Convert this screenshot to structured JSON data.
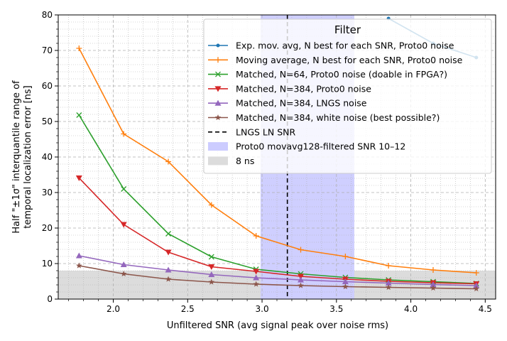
{
  "chart_data": {
    "type": "line",
    "title": "",
    "xlabel": "Unfiltered SNR (avg signal peak over noise rms)",
    "ylabel_lines": [
      "Half \"±1σ\" interquantile range of",
      "temporal localization error [ns]"
    ],
    "xlim": [
      1.63,
      4.57
    ],
    "ylim": [
      0,
      80
    ],
    "xticks": [
      2.0,
      2.5,
      3.0,
      3.5,
      4.0,
      4.5
    ],
    "xtick_labels": [
      "2.0",
      "2.5",
      "3.0",
      "3.5",
      "4.0",
      "4.5"
    ],
    "yticks": [
      0,
      10,
      20,
      30,
      40,
      50,
      60,
      70,
      80
    ],
    "ytick_labels": [
      "0",
      "10",
      "20",
      "30",
      "40",
      "50",
      "60",
      "70",
      "80"
    ],
    "grid": true,
    "legend_title": "Filter",
    "legend_position": "top-right",
    "x": [
      1.77,
      2.07,
      2.37,
      2.66,
      2.96,
      3.26,
      3.56,
      3.85,
      4.15,
      4.44
    ],
    "series": [
      {
        "name": "Exp. mov. avg, N best for each SNR, Proto0 noise",
        "color": "#1f77b4",
        "marker": "dot",
        "x": [
          3.85,
          4.15,
          4.44
        ],
        "values": [
          79,
          72,
          68
        ]
      },
      {
        "name": "Moving average, N best for each SNR, Proto0 noise",
        "color": "#ff7f0e",
        "marker": "plus",
        "values": [
          70.6,
          46.5,
          38.7,
          26.5,
          17.8,
          13.9,
          12.0,
          9.4,
          8.2,
          7.4
        ]
      },
      {
        "name": "Matched, N=64, Proto0 noise (doable in FPGA?)",
        "color": "#2ca02c",
        "marker": "x",
        "values": [
          51.8,
          31.0,
          18.4,
          11.9,
          8.4,
          7.1,
          6.1,
          5.4,
          4.9,
          4.4
        ]
      },
      {
        "name": "Matched, N=384, Proto0 noise",
        "color": "#d62728",
        "marker": "tri-down",
        "values": [
          34.1,
          21.0,
          13.2,
          9.1,
          7.8,
          6.4,
          5.6,
          5.0,
          4.6,
          4.3
        ]
      },
      {
        "name": "Matched, N=384, LNGS noise",
        "color": "#9467bd",
        "marker": "tri-up",
        "values": [
          12.2,
          9.7,
          8.2,
          6.9,
          6.0,
          5.4,
          4.9,
          4.5,
          4.1,
          3.8
        ]
      },
      {
        "name": "Matched, N=384, white noise (best possible?)",
        "color": "#8c564b",
        "marker": "star",
        "values": [
          9.4,
          7.1,
          5.6,
          4.8,
          4.2,
          3.8,
          3.5,
          3.3,
          3.1,
          2.9
        ]
      }
    ],
    "vline": {
      "name": "LNGS LN SNR",
      "x": 3.17,
      "color": "#000000"
    },
    "band": {
      "name": "Proto0 movavg128-filtered SNR 10–12",
      "x": [
        2.99,
        3.62
      ],
      "color": "#ccccff"
    },
    "hband": {
      "name": "8 ns",
      "y": [
        0,
        8
      ],
      "color": "#dcdcdc"
    }
  }
}
